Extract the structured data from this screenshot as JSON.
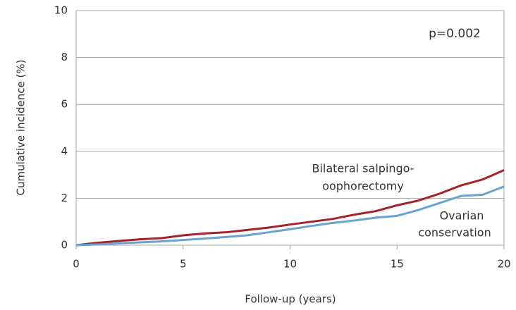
{
  "chart_data": {
    "type": "line",
    "x_label": "Follow-up (years)",
    "y_label": "Cumulative incidence (%)",
    "annotation": "p=0.002",
    "x": [
      0,
      1,
      2,
      3,
      4,
      5,
      6,
      7,
      8,
      9,
      10,
      11,
      12,
      13,
      14,
      15,
      16,
      17,
      18,
      19,
      20
    ],
    "series": [
      {
        "name_lines": [
          "Bilateral salpingo-",
          "oophorectomy"
        ],
        "color": "#a8202a",
        "values": [
          0,
          0.1,
          0.18,
          0.25,
          0.3,
          0.42,
          0.5,
          0.55,
          0.65,
          0.75,
          0.88,
          1.0,
          1.12,
          1.3,
          1.45,
          1.7,
          1.9,
          2.2,
          2.55,
          2.8,
          3.2
        ]
      },
      {
        "name_lines": [
          "Ovarian",
          "conservation"
        ],
        "color": "#6aa3cf",
        "values": [
          0,
          0.03,
          0.08,
          0.12,
          0.16,
          0.22,
          0.28,
          0.35,
          0.42,
          0.55,
          0.68,
          0.82,
          0.95,
          1.05,
          1.17,
          1.25,
          1.5,
          1.8,
          2.1,
          2.15,
          2.5
        ]
      }
    ],
    "xlim": [
      0,
      20
    ],
    "xticks": [
      0,
      5,
      10,
      15,
      20
    ],
    "ylim": [
      0,
      10
    ],
    "yticks": [
      0,
      2,
      4,
      6,
      8,
      10
    ],
    "grid": true
  }
}
